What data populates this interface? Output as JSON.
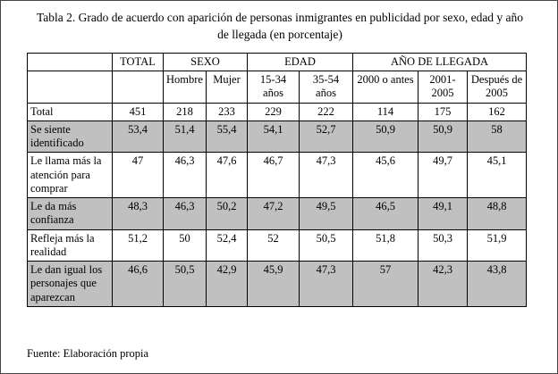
{
  "title": "Tabla 2. Grado de acuerdo con aparición de personas inmigrantes en publicidad por sexo, edad y año de llegada (en porcentaje)",
  "footer": "Fuente: Elaboración propia",
  "colors": {
    "row_shade": "#c0c0c0",
    "border": "#000000"
  },
  "table": {
    "groups": {
      "total": "TOTAL",
      "sexo": "SEXO",
      "edad": "EDAD",
      "llegada": "AÑO DE LLEGADA"
    },
    "columns": [
      "Hombre",
      "Mujer",
      "15-34 años",
      "35-54 años",
      "2000 o antes",
      "2001-2005",
      "Después de 2005"
    ],
    "rows": [
      {
        "label": "Total",
        "shaded": false,
        "values": [
          "451",
          "218",
          "233",
          "229",
          "222",
          "114",
          "175",
          "162"
        ]
      },
      {
        "label": "Se siente identificado",
        "shaded": true,
        "values": [
          "53,4",
          "51,4",
          "55,4",
          "54,1",
          "52,7",
          "50,9",
          "50,9",
          "58"
        ]
      },
      {
        "label": "Le llama más la atención para comprar",
        "shaded": false,
        "values": [
          "47",
          "46,3",
          "47,6",
          "46,7",
          "47,3",
          "45,6",
          "49,7",
          "45,1"
        ]
      },
      {
        "label": "Le da más confianza",
        "shaded": true,
        "values": [
          "48,3",
          "46,3",
          "50,2",
          "47,2",
          "49,5",
          "46,5",
          "49,1",
          "48,8"
        ]
      },
      {
        "label": "Refleja más la realidad",
        "shaded": false,
        "values": [
          "51,2",
          "50",
          "52,4",
          "52",
          "50,5",
          "51,8",
          "50,3",
          "51,9"
        ]
      },
      {
        "label": "Le dan igual los personajes que aparezcan",
        "shaded": true,
        "values": [
          "46,6",
          "50,5",
          "42,9",
          "45,9",
          "47,3",
          "57",
          "42,3",
          "43,8"
        ]
      }
    ]
  }
}
